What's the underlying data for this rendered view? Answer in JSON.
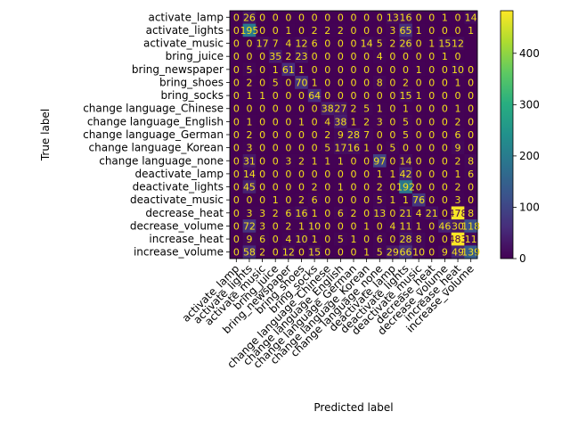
{
  "chart_data": {
    "type": "heatmap",
    "title": "",
    "xlabel": "Predicted label",
    "ylabel": "True label",
    "labels": [
      "activate_lamp",
      "activate_lights",
      "activate_music",
      "bring_juice",
      "bring_newspaper",
      "bring_shoes",
      "bring_socks",
      "change language_Chinese",
      "change language_English",
      "change language_German",
      "change language_Korean",
      "change language_none",
      "deactivate_lamp",
      "deactivate_lights",
      "deactivate_music",
      "decrease_heat",
      "decrease_volume",
      "increase_heat",
      "increase_volume"
    ],
    "matrix": [
      [
        "0",
        "26",
        "0",
        "0",
        "0",
        "0",
        "0",
        "0",
        "0",
        "0",
        "0",
        "0",
        "13",
        "16",
        "0",
        "0",
        "1",
        "0",
        "14"
      ],
      [
        "0",
        "195",
        "0",
        "0",
        "1",
        "0",
        "2",
        "2",
        "2",
        "0",
        "0",
        "0",
        "3",
        "65",
        "1",
        "0",
        "0",
        "0",
        "1"
      ],
      [
        "0",
        "0",
        "17",
        "7",
        "4",
        "12",
        "6",
        "0",
        "0",
        "0",
        "14",
        "5",
        "2",
        "26",
        "0",
        "1",
        "15",
        "12",
        ""
      ],
      [
        "0",
        "0",
        "0",
        "35",
        "2",
        "23",
        "0",
        "0",
        "0",
        "0",
        "0",
        "4",
        "0",
        "0",
        "0",
        "0",
        "1",
        "0",
        ""
      ],
      [
        "0",
        "5",
        "0",
        "1",
        "61",
        "1",
        "0",
        "0",
        "0",
        "0",
        "0",
        "0",
        "0",
        "0",
        "1",
        "0",
        "0",
        "10",
        "0"
      ],
      [
        "0",
        "2",
        "0",
        "5",
        "0",
        "70",
        "1",
        "0",
        "0",
        "0",
        "0",
        "8",
        "0",
        "2",
        "0",
        "0",
        "0",
        "1",
        "0"
      ],
      [
        "0",
        "1",
        "1",
        "0",
        "0",
        "0",
        "64",
        "0",
        "0",
        "0",
        "0",
        "0",
        "0",
        "15",
        "1",
        "0",
        "0",
        "0",
        "0"
      ],
      [
        "0",
        "0",
        "0",
        "0",
        "0",
        "0",
        "0",
        "38",
        "27",
        "2",
        "5",
        "1",
        "0",
        "1",
        "0",
        "0",
        "0",
        "1",
        "0"
      ],
      [
        "0",
        "1",
        "0",
        "0",
        "0",
        "1",
        "0",
        "4",
        "38",
        "1",
        "2",
        "3",
        "0",
        "5",
        "0",
        "0",
        "0",
        "2",
        "0"
      ],
      [
        "0",
        "2",
        "0",
        "0",
        "0",
        "0",
        "0",
        "2",
        "9",
        "28",
        "7",
        "0",
        "0",
        "5",
        "0",
        "0",
        "0",
        "6",
        "0"
      ],
      [
        "0",
        "3",
        "0",
        "0",
        "0",
        "0",
        "0",
        "5",
        "17",
        "16",
        "1",
        "0",
        "5",
        "0",
        "0",
        "0",
        "0",
        "9",
        "0"
      ],
      [
        "0",
        "31",
        "0",
        "0",
        "3",
        "2",
        "1",
        "1",
        "1",
        "0",
        "0",
        "97",
        "0",
        "14",
        "0",
        "0",
        "0",
        "2",
        "8"
      ],
      [
        "0",
        "14",
        "0",
        "0",
        "0",
        "0",
        "0",
        "0",
        "0",
        "0",
        "0",
        "1",
        "1",
        "42",
        "0",
        "0",
        "0",
        "1",
        "6"
      ],
      [
        "0",
        "45",
        "0",
        "0",
        "0",
        "0",
        "2",
        "0",
        "1",
        "0",
        "0",
        "2",
        "0",
        "192",
        "0",
        "0",
        "0",
        "2",
        "0"
      ],
      [
        "0",
        "0",
        "0",
        "1",
        "0",
        "2",
        "6",
        "0",
        "0",
        "0",
        "0",
        "5",
        "1",
        "1",
        "76",
        "0",
        "0",
        "3",
        "0"
      ],
      [
        "0",
        "3",
        "3",
        "2",
        "6",
        "16",
        "1",
        "0",
        "6",
        "2",
        "0",
        "13",
        "0",
        "21",
        "4",
        "21",
        "0",
        "478",
        "8"
      ],
      [
        "0",
        "72",
        "3",
        "0",
        "2",
        "1",
        "10",
        "0",
        "0",
        "0",
        "1",
        "0",
        "4",
        "11",
        "1",
        "0",
        "46",
        "30",
        "118"
      ],
      [
        "0",
        "9",
        "6",
        "0",
        "4",
        "10",
        "1",
        "0",
        "5",
        "1",
        "0",
        "6",
        "0",
        "28",
        "8",
        "0",
        "0",
        "483",
        "11"
      ],
      [
        "0",
        "58",
        "2",
        "0",
        "12",
        "0",
        "15",
        "0",
        "0",
        "0",
        "1",
        "5",
        "29",
        "66",
        "10",
        "0",
        "9",
        "49",
        "139"
      ]
    ],
    "colorbar": {
      "min": 0,
      "max": 483,
      "ticks": [
        0,
        100,
        200,
        300,
        400
      ]
    },
    "colormap": "viridis",
    "text_color_light": "#f5e11a",
    "text_color_dark": "#440154"
  }
}
